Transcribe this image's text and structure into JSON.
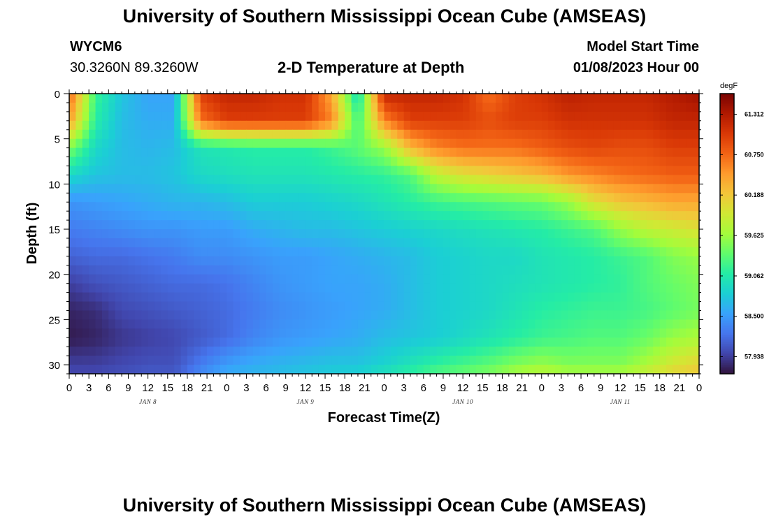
{
  "header": {
    "title": "University of Southern Mississippi Ocean Cube (AMSEAS)",
    "station": "WYCM6",
    "coords": "30.3260N  89.3260W",
    "subtitle": "2-D Temperature at Depth",
    "model_label": "Model Start Time",
    "model_time": "01/08/2023 Hour 00"
  },
  "footer": {
    "title": "University of Southern Mississippi Ocean Cube (AMSEAS)"
  },
  "chart_data": {
    "type": "heatmap",
    "title": "2-D Temperature at Depth",
    "xlabel": "Forecast Time(Z)",
    "ylabel": "Depth (ft)",
    "x_range_hours": [
      0,
      96
    ],
    "x_tick_labels": [
      "0",
      "3",
      "6",
      "9",
      "12",
      "15",
      "18",
      "21",
      "0",
      "3",
      "6",
      "9",
      "12",
      "15",
      "18",
      "21",
      "0",
      "3",
      "6",
      "9",
      "12",
      "15",
      "18",
      "21",
      "0",
      "3",
      "6",
      "9",
      "12",
      "15",
      "18",
      "21",
      "0"
    ],
    "day_labels": [
      "JAN 8",
      "JAN 9",
      "JAN 10",
      "JAN 11"
    ],
    "y_range_ft": [
      0,
      31
    ],
    "y_ticks": [
      0,
      5,
      10,
      15,
      20,
      25,
      30
    ],
    "colorbar": {
      "unit": "degF",
      "ticks": [
        "61.312",
        "60.750",
        "60.188",
        "59.625",
        "59.062",
        "58.500",
        "57.938"
      ],
      "range": [
        57.7,
        61.6
      ],
      "colors": [
        "#30123b",
        "#4145ab",
        "#4675ed",
        "#39a2fc",
        "#1bcfd4",
        "#24eca6",
        "#61fc6c",
        "#a4fc3b",
        "#d1e834",
        "#f3c63a",
        "#fe9b2d",
        "#f36315",
        "#d93806",
        "#b11901",
        "#7a0403"
      ]
    },
    "depth_levels_ft": [
      0,
      3,
      6,
      9,
      12,
      15,
      18,
      21,
      24,
      27,
      30,
      31
    ],
    "time_hours": [
      0,
      4,
      8,
      12,
      16,
      20,
      24,
      28,
      32,
      36,
      40,
      44,
      48,
      52,
      56,
      60,
      64,
      68,
      72,
      76,
      80,
      84,
      88,
      92,
      96
    ],
    "values": [
      [
        60.8,
        59.2,
        58.75,
        58.55,
        58.55,
        61.0,
        61.2,
        61.2,
        61.1,
        61.1,
        60.4,
        58.9,
        61.2,
        61.2,
        61.2,
        61.1,
        60.7,
        61.0,
        61.1,
        61.25,
        61.2,
        61.2,
        61.2,
        61.3,
        61.4
      ],
      [
        60.5,
        59.1,
        58.7,
        58.6,
        58.6,
        60.7,
        61.0,
        61.0,
        61.0,
        61.0,
        60.6,
        59.2,
        60.6,
        61.0,
        61.0,
        61.0,
        60.9,
        61.0,
        61.0,
        61.1,
        61.1,
        61.1,
        61.1,
        61.2,
        61.2
      ],
      [
        59.5,
        58.9,
        58.7,
        58.65,
        58.7,
        59.0,
        59.05,
        59.1,
        59.1,
        59.1,
        59.2,
        59.35,
        59.6,
        60.3,
        60.6,
        60.7,
        60.7,
        60.7,
        60.8,
        60.9,
        60.95,
        60.9,
        60.9,
        61.0,
        61.0
      ],
      [
        58.9,
        58.75,
        58.7,
        58.7,
        58.75,
        58.9,
        58.95,
        59.0,
        59.0,
        59.0,
        59.05,
        59.1,
        59.15,
        59.3,
        59.8,
        60.0,
        60.1,
        60.2,
        60.3,
        60.5,
        60.6,
        60.7,
        60.75,
        60.8,
        60.8
      ],
      [
        58.45,
        58.5,
        58.55,
        58.6,
        58.65,
        58.65,
        58.7,
        58.8,
        58.8,
        58.8,
        58.85,
        58.9,
        59.0,
        59.1,
        59.2,
        59.25,
        59.3,
        59.35,
        59.4,
        59.6,
        60.0,
        60.2,
        60.3,
        60.4,
        60.4
      ],
      [
        58.3,
        58.35,
        58.4,
        58.45,
        58.45,
        58.5,
        58.5,
        58.6,
        58.65,
        58.7,
        58.7,
        58.75,
        58.8,
        58.85,
        58.9,
        58.95,
        59.0,
        59.05,
        59.1,
        59.2,
        59.3,
        59.6,
        59.8,
        59.9,
        60.0
      ],
      [
        58.15,
        58.2,
        58.2,
        58.25,
        58.3,
        58.4,
        58.4,
        58.45,
        58.5,
        58.5,
        58.55,
        58.6,
        58.65,
        58.7,
        58.8,
        58.85,
        58.9,
        58.9,
        59.0,
        59.05,
        59.1,
        59.2,
        59.3,
        59.5,
        59.6
      ],
      [
        57.95,
        58.05,
        58.1,
        58.15,
        58.2,
        58.2,
        58.25,
        58.35,
        58.45,
        58.5,
        58.55,
        58.55,
        58.6,
        58.7,
        58.8,
        58.85,
        58.9,
        58.95,
        59.0,
        59.05,
        59.1,
        59.15,
        59.3,
        59.4,
        59.5
      ],
      [
        57.8,
        57.85,
        58.0,
        58.05,
        58.1,
        58.15,
        58.2,
        58.3,
        58.4,
        58.45,
        58.5,
        58.55,
        58.6,
        58.7,
        58.8,
        58.85,
        58.9,
        59.0,
        59.1,
        59.15,
        59.2,
        59.2,
        59.25,
        59.35,
        59.45
      ],
      [
        57.75,
        57.8,
        57.9,
        57.95,
        58.0,
        58.1,
        58.2,
        58.35,
        58.45,
        58.5,
        58.55,
        58.6,
        58.7,
        58.75,
        58.8,
        58.9,
        59.0,
        59.1,
        59.2,
        59.25,
        59.3,
        59.3,
        59.4,
        59.6,
        59.7
      ],
      [
        57.95,
        57.95,
        58.0,
        58.05,
        58.05,
        58.3,
        58.5,
        58.6,
        58.65,
        58.7,
        58.75,
        58.75,
        58.85,
        59.0,
        59.15,
        59.25,
        59.35,
        59.5,
        59.6,
        59.5,
        59.5,
        59.5,
        59.7,
        59.95,
        60.1
      ],
      [
        58.0,
        58.0,
        58.05,
        58.1,
        58.1,
        58.4,
        58.6,
        58.65,
        58.7,
        58.75,
        58.8,
        58.85,
        59.0,
        59.15,
        59.3,
        59.4,
        59.5,
        59.7,
        59.8,
        59.7,
        59.7,
        59.7,
        59.9,
        60.1,
        60.2
      ]
    ]
  }
}
